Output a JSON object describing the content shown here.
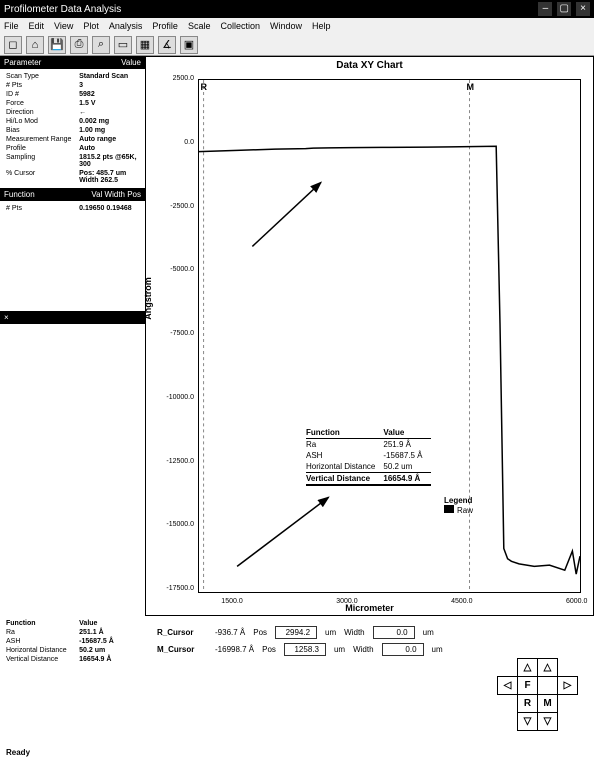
{
  "window": {
    "title": "Profilometer Data Analysis"
  },
  "menu": {
    "items": [
      "File",
      "Edit",
      "View",
      "Plot",
      "Analysis",
      "Profile",
      "Scale",
      "Collection",
      "Window",
      "Help"
    ]
  },
  "toolbar": {
    "icons": [
      "new-icon",
      "open-icon",
      "save-icon",
      "print-icon",
      "zoom-icon",
      "box-icon",
      "grid-icon",
      "measure-icon",
      "settings-icon"
    ]
  },
  "panels": {
    "parameters": {
      "title_left": "Parameter",
      "title_right": "Value",
      "rows": [
        [
          "Scan Type",
          "Standard Scan"
        ],
        [
          "# Pts",
          "3"
        ],
        [
          "ID #",
          "5982"
        ],
        [
          "Force",
          "1.5 V"
        ],
        [
          "Direction",
          "←"
        ],
        [
          "Hi/Lo Mod",
          "0.002 mg"
        ],
        [
          "Bias",
          "1.00 mg"
        ],
        [
          "Measurement Range",
          "Auto range"
        ],
        [
          "Profile",
          "Auto"
        ],
        [
          "Sampling",
          "1815.2 pts @65K, 300"
        ],
        [
          "% Cursor",
          "Pos: 485.7 um Width 262.5"
        ]
      ]
    },
    "function": {
      "title_left": "Function",
      "title_right": "Val Width Pos",
      "rows": [
        [
          "# Pts",
          "0.19650   0.19468"
        ]
      ]
    },
    "summary": {
      "title": "",
      "header": [
        "Function",
        "Value"
      ],
      "rows": [
        [
          "Ra",
          "251.1 Å"
        ],
        [
          "ASH",
          "-15687.5 Å"
        ],
        [
          "Horizontal Distance",
          "50.2 um"
        ],
        [
          "Vertical Distance",
          "16654.9 Å"
        ]
      ]
    }
  },
  "chart": {
    "title": "Data XY Chart",
    "type": "line",
    "xlabel": "Micrometer",
    "ylabel": "Angstrom",
    "xlim": [
      1000,
      6000
    ],
    "xticks": [
      1500,
      3000,
      4500,
      6000
    ],
    "ylim": [
      -17500,
      2500
    ],
    "yticks": [
      2500,
      0,
      -2500,
      -5000,
      -7500,
      -10000,
      -12500,
      -15000,
      -17500
    ],
    "yticklabels": [
      "2500.0",
      "0.0",
      "-2500.0",
      "-5000.0",
      "-7500.0",
      "-10000.0",
      "-12500.0",
      "-15000.0",
      "-17500.0"
    ],
    "xticklabels": [
      "1500.0",
      "3000.0",
      "4500.0",
      "6000.0"
    ],
    "line_color": "#000000",
    "background_color": "#ffffff",
    "grid_color": "#cccccc",
    "series": {
      "x": [
        1000,
        1200,
        1500,
        2000,
        2400,
        2500,
        2700,
        3000,
        3500,
        4000,
        4300,
        4900,
        4950,
        5000,
        5050,
        5100,
        5200,
        5400,
        5600,
        5800,
        5900,
        5950,
        6000
      ],
      "y": [
        -300,
        -280,
        -250,
        -200,
        -180,
        -160,
        -150,
        -140,
        -130,
        -120,
        -110,
        -90,
        -7000,
        -15800,
        -16200,
        -16300,
        -16400,
        -16500,
        -16450,
        -16650,
        -15900,
        -16800,
        -16100
      ]
    },
    "r_marker_label": "R",
    "m_marker_label": "M",
    "r_marker_x": 1060,
    "m_marker_x": 4550,
    "info_table": {
      "header": [
        "Function",
        "Value"
      ],
      "rows": [
        [
          "Ra",
          "251.9 Å"
        ],
        [
          "ASH",
          "-15687.5 Å"
        ],
        [
          "Horizontal Distance",
          "50.2 um"
        ]
      ],
      "emph_row": [
        "Vertical Distance",
        "16654.9 Å"
      ]
    },
    "legend": {
      "title": "Legend",
      "items": [
        {
          "label": "Raw",
          "color": "#000000"
        }
      ]
    }
  },
  "cursors": {
    "r": {
      "label": "R_Cursor",
      "y": "-936.7 Å",
      "x_label": "Pos",
      "x": "2994.2",
      "x_unit": "um",
      "w_label": "Width",
      "w": "0.0",
      "w_unit": "um"
    },
    "m": {
      "label": "M_Cursor",
      "y": "-16998.7 Å",
      "x_label": "Pos",
      "x": "1258.3",
      "x_unit": "um",
      "w_label": "Width",
      "w": "0.0",
      "w_unit": "um"
    }
  },
  "nav": {
    "up": "△",
    "down": "▽",
    "left": "◁",
    "right": "▷",
    "f": "F",
    "r": "R",
    "m": "M"
  },
  "status": {
    "text": "Ready"
  },
  "colors": {
    "bg": "#ffffff",
    "fg": "#000000",
    "panel_header": "#000000"
  }
}
